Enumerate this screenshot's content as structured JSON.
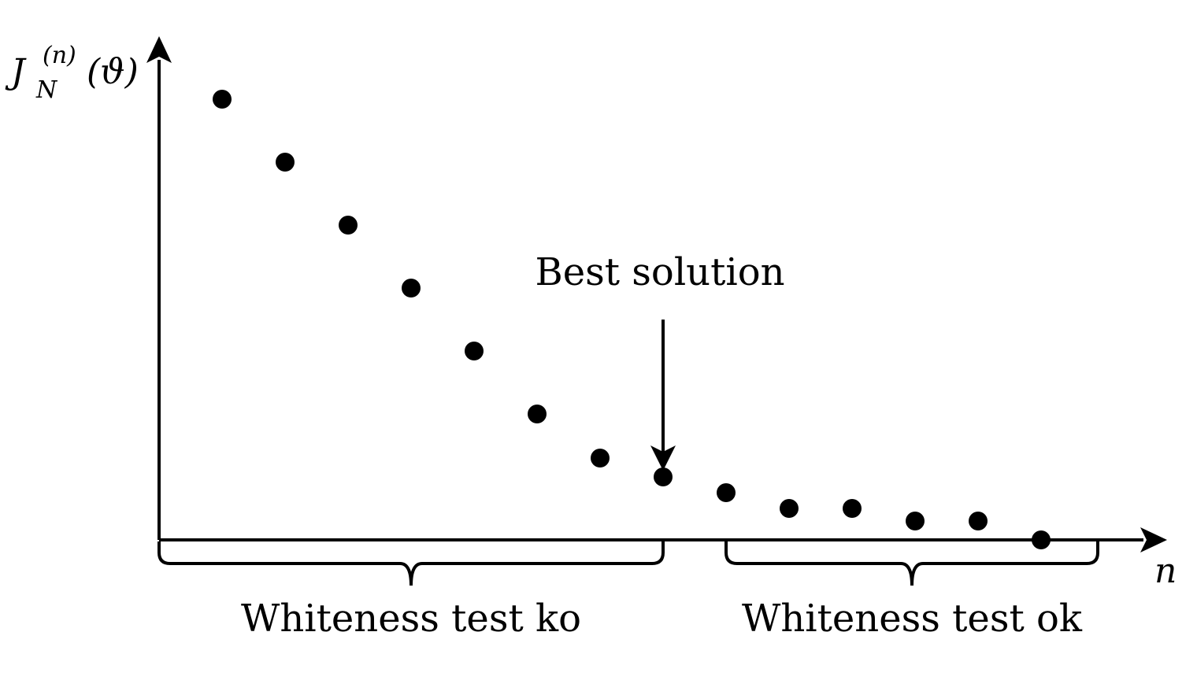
{
  "chart_data": {
    "type": "scatter",
    "title": "",
    "xlabel": "n",
    "ylabel": {
      "base": "J",
      "subscript": "N",
      "superscript": "(n)",
      "argument": "(ϑ)"
    },
    "x": [
      1,
      2,
      3,
      4,
      5,
      6,
      7,
      8,
      9,
      10,
      11,
      12,
      13,
      14
    ],
    "y": [
      7.0,
      6.0,
      5.0,
      4.0,
      3.0,
      2.0,
      1.3,
      1.0,
      0.75,
      0.5,
      0.5,
      0.3,
      0.3,
      0.0
    ],
    "xlim": [
      0,
      15
    ],
    "ylim": [
      0,
      8
    ],
    "grid": false,
    "legend": "none",
    "ticks": "none",
    "annotations": {
      "best_solution": {
        "label": "Best solution",
        "x": 8
      },
      "braces": [
        {
          "label": "Whiteness test ko",
          "x_from": 0,
          "x_to": 8
        },
        {
          "label": "Whiteness test ok",
          "x_from": 9,
          "x_to": 14.9
        }
      ]
    },
    "colors": {
      "ink": "#000000",
      "background": "#ffffff"
    }
  }
}
